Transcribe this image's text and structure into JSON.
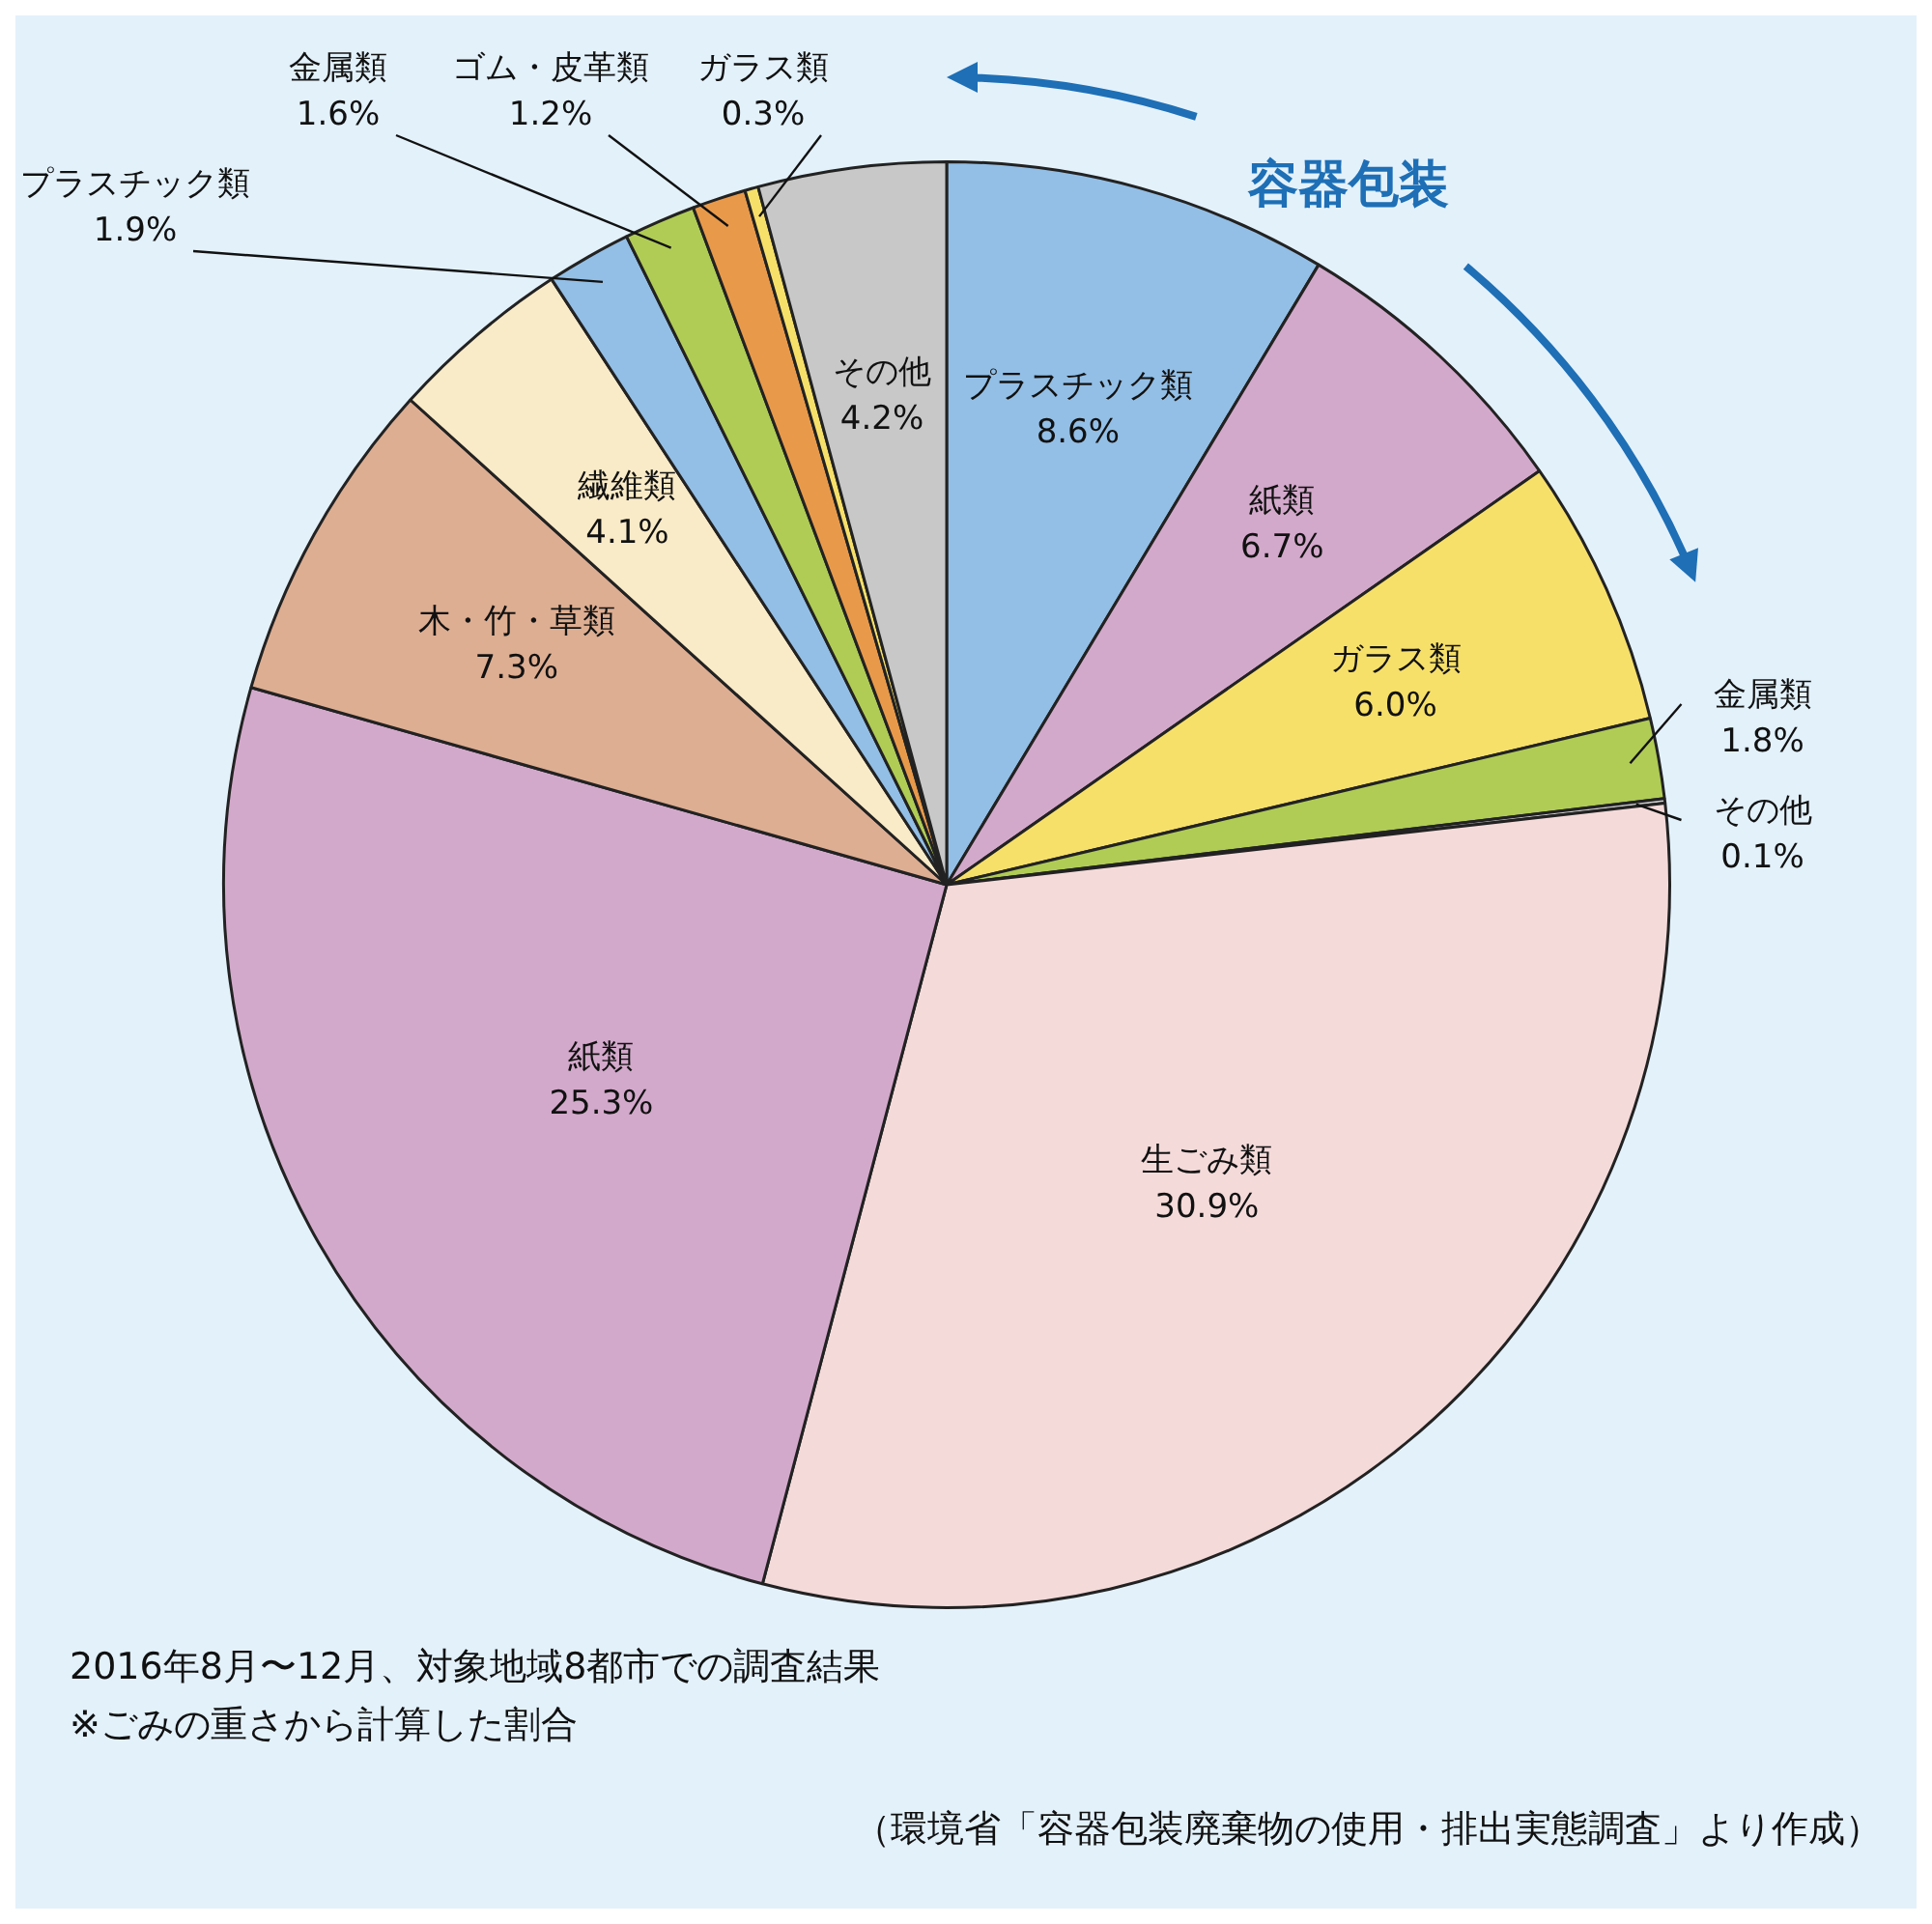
{
  "chart_data": {
    "type": "pie",
    "categories": [
      "プラスチック類",
      "紙類",
      "ガラス類",
      "金属類",
      "その他",
      "生ごみ類",
      "紙類",
      "木・竹・草類",
      "繊維類",
      "プラスチック類",
      "金属類",
      "ゴム・皮革類",
      "ガラス類",
      "その他"
    ],
    "values": [
      8.6,
      6.7,
      6.0,
      1.8,
      0.1,
      30.9,
      25.3,
      7.3,
      4.1,
      1.9,
      1.6,
      1.2,
      0.3,
      4.2
    ],
    "value_labels": [
      "8.6%",
      "6.7%",
      "6.0%",
      "1.8%",
      "0.1%",
      "30.9%",
      "25.3%",
      "7.3%",
      "4.1%",
      "1.9%",
      "1.6%",
      "1.2%",
      "0.3%",
      "4.2%"
    ],
    "colors": [
      "#93bfe6",
      "#d3a9cb",
      "#f7e06a",
      "#b0cc55",
      "#d0d0d0",
      "#f5dada",
      "#d3a9cb",
      "#ddae92",
      "#faebc8",
      "#93bfe6",
      "#b0cc55",
      "#e89a4a",
      "#f7e06a",
      "#c8c8c8"
    ],
    "legend": false,
    "annotations": [
      "容器包装",
      "2016年8月〜12月、対象地域8都市での調査結果",
      "※ごみの重さから計算した割合",
      "（環境省「容器包装廃棄物の使用・排出実態調査」より作成）"
    ]
  }
}
